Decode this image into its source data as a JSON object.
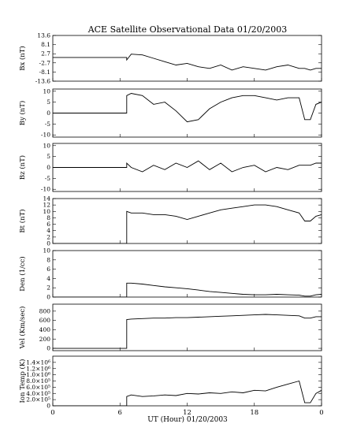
{
  "title": "ACE Satellite Observational Data   01/20/2003",
  "x_axis": {
    "label": "UT (Hour)   01/20/2003",
    "ticks": [
      {
        "hour": 0,
        "label": "0"
      },
      {
        "hour": 6,
        "label": "6"
      },
      {
        "hour": 12,
        "label": "12"
      },
      {
        "hour": 18,
        "label": "18"
      },
      {
        "hour": 24,
        "label": "0"
      }
    ],
    "range": [
      0,
      24
    ]
  },
  "chart_data": [
    {
      "type": "line",
      "name": "bx",
      "ylabel": "Bx (nT)",
      "ylim": [
        -13.6,
        13.6
      ],
      "ticks": [
        "13.6",
        "8.1",
        "2.7",
        "-2.7",
        "-8.1",
        "-13.6"
      ],
      "tick_values": [
        13.6,
        8.1,
        2.7,
        -2.7,
        -8.1,
        -13.6
      ],
      "x": [
        0,
        6.6,
        6.6,
        7,
        8,
        9,
        10,
        11,
        12,
        13,
        14,
        15,
        16,
        17,
        18,
        19,
        20,
        21,
        22,
        22.5,
        23,
        23.5,
        24
      ],
      "y": [
        0.5,
        0.5,
        -1,
        2.5,
        2,
        0,
        -2,
        -4,
        -3,
        -5,
        -6,
        -4,
        -7,
        -5,
        -6,
        -7,
        -5,
        -4,
        -6,
        -6,
        -7,
        -6,
        -6
      ]
    },
    {
      "type": "line",
      "name": "by",
      "ylabel": "By (nT)",
      "ylim": [
        -11,
        11
      ],
      "ticks": [
        "10",
        "5",
        "0",
        "-5",
        "-10"
      ],
      "tick_values": [
        10,
        5,
        0,
        -5,
        -10
      ],
      "x": [
        0,
        6.6,
        6.6,
        7,
        8,
        9,
        10,
        11,
        12,
        13,
        14,
        15,
        16,
        17,
        18,
        19,
        20,
        21,
        22,
        22.5,
        23,
        23.5,
        24
      ],
      "y": [
        0,
        0,
        8,
        9,
        8,
        4,
        5,
        1,
        -4,
        -3,
        2,
        5,
        7,
        8,
        8,
        7,
        6,
        7,
        7,
        -3,
        -3,
        4,
        5
      ]
    },
    {
      "type": "line",
      "name": "bz",
      "ylabel": "Bz (nT)",
      "ylim": [
        -11,
        11
      ],
      "ticks": [
        "10",
        "5",
        "0",
        "-5",
        "-10"
      ],
      "tick_values": [
        10,
        5,
        0,
        -5,
        -10
      ],
      "x": [
        0,
        6.6,
        6.6,
        7,
        8,
        9,
        10,
        11,
        12,
        13,
        14,
        15,
        16,
        17,
        18,
        19,
        20,
        21,
        22,
        22.5,
        23,
        23.5,
        24
      ],
      "y": [
        0,
        0,
        2,
        0,
        -2,
        1,
        -1,
        2,
        0,
        3,
        -1,
        2,
        -2,
        0,
        1,
        -2,
        0,
        -1,
        1,
        1,
        1,
        2,
        2
      ]
    },
    {
      "type": "line",
      "name": "bt",
      "ylabel": "Bt (nT)",
      "ylim": [
        0,
        14
      ],
      "ticks": [
        "14",
        "12",
        "10",
        "8",
        "6",
        "4",
        "2",
        "0"
      ],
      "tick_values": [
        14,
        12,
        10,
        8,
        6,
        4,
        2,
        0
      ],
      "x": [
        0,
        6.6,
        6.6,
        7,
        8,
        9,
        10,
        11,
        12,
        13,
        14,
        15,
        16,
        17,
        18,
        19,
        20,
        21,
        22,
        22.5,
        23,
        23.5,
        24
      ],
      "y": [
        0,
        0,
        10,
        9.5,
        9.5,
        9,
        9,
        8.5,
        7.5,
        8.5,
        9.5,
        10.5,
        11,
        11.5,
        12,
        12,
        11.5,
        10.5,
        9.5,
        7,
        7,
        8.5,
        9
      ]
    },
    {
      "type": "line",
      "name": "den",
      "ylabel": "Den (1/cc)",
      "ylim": [
        0,
        10
      ],
      "ticks": [
        "10",
        "8",
        "6",
        "4",
        "2",
        "0"
      ],
      "tick_values": [
        10,
        8,
        6,
        4,
        2,
        0
      ],
      "x": [
        0,
        6.6,
        6.6,
        7,
        8,
        9,
        10,
        11,
        12,
        13,
        14,
        15,
        16,
        17,
        18,
        19,
        20,
        21,
        22,
        22.5,
        23,
        23.5,
        24
      ],
      "y": [
        0,
        0,
        3,
        3,
        2.8,
        2.5,
        2.2,
        2,
        1.8,
        1.5,
        1.2,
        1,
        0.8,
        0.6,
        0.5,
        0.5,
        0.6,
        0.5,
        0.4,
        0.2,
        0.2,
        0.5,
        0.6
      ]
    },
    {
      "type": "line",
      "name": "vel",
      "ylabel": "Vel (Km/sec)",
      "ylim": [
        -50,
        950
      ],
      "ticks": [
        "800",
        "600",
        "400",
        "200",
        "0"
      ],
      "tick_values": [
        800,
        600,
        400,
        200,
        0
      ],
      "x": [
        0,
        6.6,
        6.6,
        7,
        8,
        9,
        10,
        11,
        12,
        13,
        14,
        15,
        16,
        17,
        18,
        19,
        20,
        21,
        22,
        22.5,
        23,
        23.5,
        24
      ],
      "y": [
        0,
        0,
        620,
        630,
        640,
        650,
        650,
        660,
        660,
        670,
        680,
        690,
        700,
        710,
        720,
        730,
        720,
        710,
        700,
        650,
        650,
        680,
        680
      ]
    },
    {
      "type": "line",
      "name": "temp",
      "ylabel": "Ion Temp (K)",
      "ylim": [
        0,
        1600000
      ],
      "ticks": [
        "1.4×10⁶",
        "1.2×10⁶",
        "1.0×10⁶",
        "8.0×10⁵",
        "6.0×10⁵",
        "4.0×10⁵",
        "2.0×10⁵",
        "0"
      ],
      "tick_values": [
        1400000,
        1200000,
        1000000,
        800000,
        600000,
        400000,
        200000,
        0
      ],
      "x": [
        0,
        6.6,
        6.6,
        7,
        8,
        9,
        10,
        11,
        12,
        13,
        14,
        15,
        16,
        17,
        18,
        19,
        20,
        21,
        22,
        22.5,
        23,
        23.5,
        24
      ],
      "y": [
        0,
        0,
        300000,
        350000,
        300000,
        320000,
        350000,
        330000,
        400000,
        380000,
        420000,
        400000,
        450000,
        420000,
        500000,
        480000,
        600000,
        700000,
        800000,
        100000,
        100000,
        400000,
        500000
      ]
    }
  ]
}
